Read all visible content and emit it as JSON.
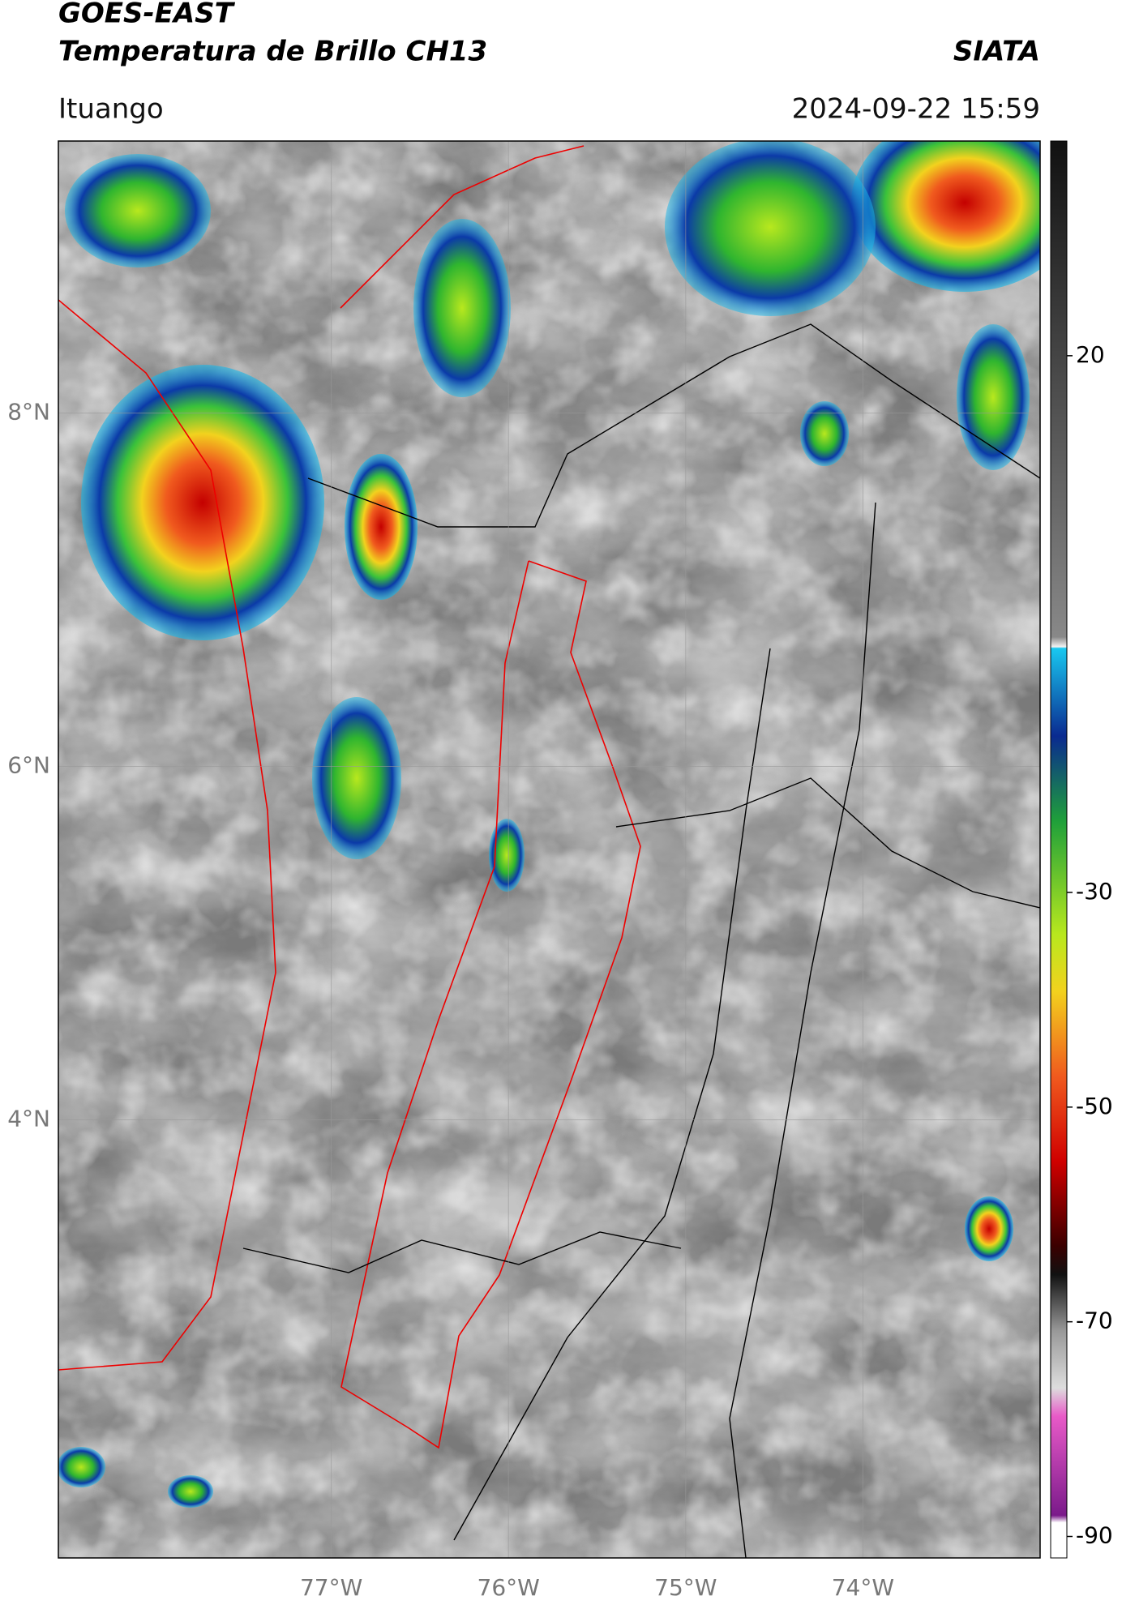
{
  "header": {
    "title": "GOES-EAST",
    "subtitle": "Temperatura de Brillo CH13",
    "source": "SIATA",
    "location": "Ituango",
    "datetime": "2024-09-22 15:59"
  },
  "map": {
    "xlim": [
      -78.54,
      -73.0
    ],
    "ylim": [
      1.52,
      9.54
    ],
    "xticks": [
      {
        "value": -77,
        "label": "77°W"
      },
      {
        "value": -76,
        "label": "76°W"
      },
      {
        "value": -75,
        "label": "75°W"
      },
      {
        "value": -74,
        "label": "74°W"
      }
    ],
    "yticks": [
      {
        "value": 4,
        "label": "4°N"
      },
      {
        "value": 6,
        "label": "6°N"
      },
      {
        "value": 8,
        "label": "8°N"
      }
    ],
    "grid": true
  },
  "colorbar": {
    "lim": [
      -92,
      40
    ],
    "ticks": [
      20,
      -30,
      -50,
      -70,
      -90
    ]
  }
}
